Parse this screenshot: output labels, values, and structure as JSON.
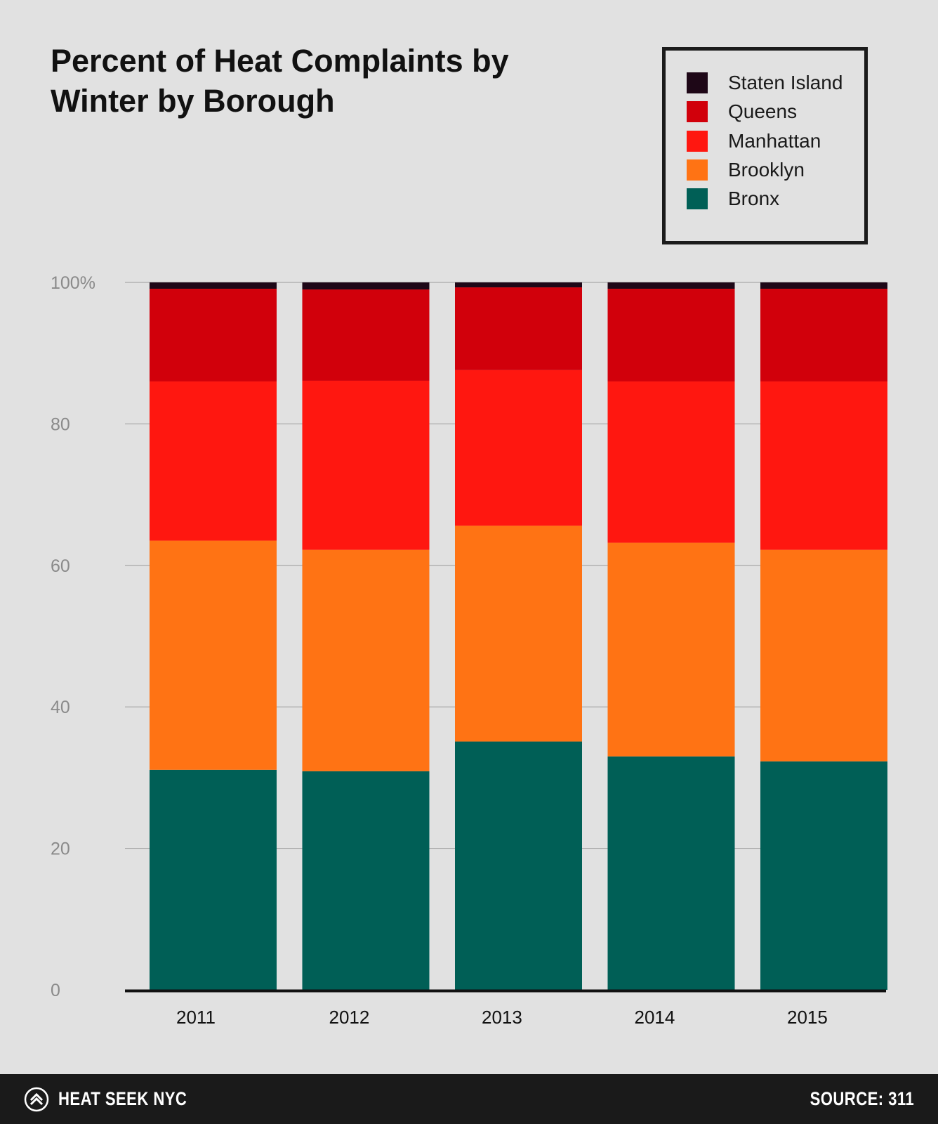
{
  "chart_data": {
    "type": "bar",
    "stacked": true,
    "title_lines": [
      "Percent of Heat Complaints by",
      "Winter by Borough"
    ],
    "categories": [
      "2011",
      "2012",
      "2013",
      "2014",
      "2015"
    ],
    "series": [
      {
        "name": "Bronx",
        "color": "#005f56",
        "values": [
          31.1,
          30.9,
          35.1,
          33.0,
          32.3
        ]
      },
      {
        "name": "Brooklyn",
        "color": "#ff7314",
        "values": [
          32.4,
          31.3,
          30.5,
          30.2,
          29.9
        ]
      },
      {
        "name": "Manhattan",
        "color": "#ff1710",
        "values": [
          22.5,
          23.9,
          22.0,
          22.8,
          23.8
        ]
      },
      {
        "name": "Queens",
        "color": "#d1000b",
        "values": [
          13.1,
          12.9,
          11.7,
          13.1,
          13.1
        ]
      },
      {
        "name": "Staten Island",
        "color": "#1e0717",
        "values": [
          0.9,
          1.0,
          0.7,
          0.9,
          0.9
        ]
      }
    ],
    "legend_order": [
      "Staten Island",
      "Queens",
      "Manhattan",
      "Brooklyn",
      "Bronx"
    ],
    "legend_placement": "top-right",
    "yticks": [
      {
        "value": 0,
        "label": "0"
      },
      {
        "value": 20,
        "label": "20"
      },
      {
        "value": 40,
        "label": "40"
      },
      {
        "value": 60,
        "label": "60"
      },
      {
        "value": 80,
        "label": "80"
      },
      {
        "value": 100,
        "label": "100%"
      }
    ],
    "ylim": [
      0,
      100
    ],
    "grid": true,
    "xlabel": "",
    "ylabel": ""
  },
  "footer": {
    "brand": "HEAT SEEK NYC",
    "brand_icon": "heat-seek-chevron-icon",
    "source": "SOURCE: 311"
  },
  "colors": {
    "background": "#e1e1e1",
    "footer": "#1a1a1a",
    "gridline": "#9a9a9a",
    "tick_label": "#8a8a8a",
    "axis": "#111111"
  }
}
